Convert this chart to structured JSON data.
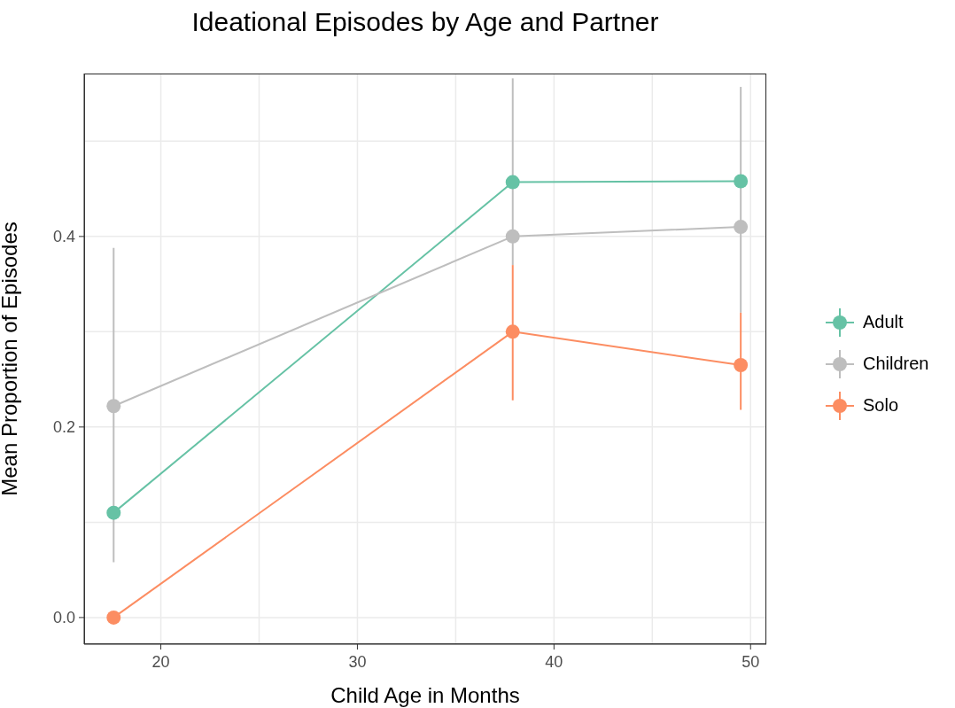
{
  "chart_data": {
    "type": "line",
    "title": "Ideational Episodes by Age and Partner",
    "xlabel": "Child Age in Months",
    "ylabel": "Mean Proportion of Episodes",
    "x": [
      17.6,
      37.9,
      49.5
    ],
    "series": [
      {
        "name": "Adult",
        "color": "#66c2a5",
        "values": [
          0.11,
          0.457,
          0.458
        ],
        "errors": [
          null,
          null,
          null
        ]
      },
      {
        "name": "Children",
        "color": "#bebebe",
        "values": [
          0.222,
          0.4,
          0.41
        ],
        "errors": [
          [
            0.058,
            0.388
          ],
          [
            0.37,
            0.566
          ],
          [
            0.32,
            0.557
          ]
        ]
      },
      {
        "name": "Solo",
        "color": "#fc8d62",
        "values": [
          0,
          0.3,
          0.265
        ],
        "errors": [
          null,
          [
            0.228,
            0.37
          ],
          [
            0.218,
            0.32
          ]
        ]
      }
    ],
    "xlim": [
      16.1,
      50.8
    ],
    "ylim": [
      -0.028,
      0.571
    ],
    "xticks": [
      20,
      {
        "value": 25,
        "label": null
      },
      30,
      {
        "value": 35,
        "label": null
      },
      40,
      {
        "value": 45,
        "label": null
      },
      50
    ],
    "yticks": [
      {
        "value": 0,
        "label": "0.0"
      },
      {
        "value": 0.1,
        "label": null
      },
      {
        "value": 0.2,
        "label": "0.2"
      },
      {
        "value": 0.3,
        "label": null
      },
      {
        "value": 0.4,
        "label": "0.4"
      },
      {
        "value": 0.5,
        "label": null
      }
    ],
    "grid": true,
    "legend": "right",
    "marker": "circle",
    "line_style": "solid"
  }
}
